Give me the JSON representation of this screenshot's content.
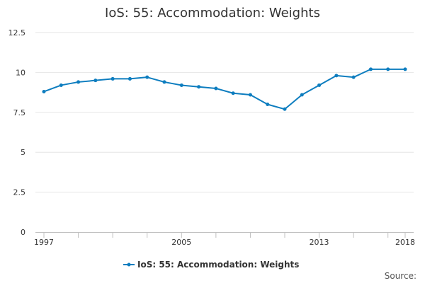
{
  "chart_data": {
    "type": "line",
    "title": "IoS: 55: Accommodation: Weights",
    "xlabel": "",
    "ylabel": "",
    "x": [
      1997,
      1998,
      1999,
      2000,
      2001,
      2002,
      2003,
      2004,
      2005,
      2006,
      2007,
      2008,
      2009,
      2010,
      2011,
      2012,
      2013,
      2014,
      2015,
      2016,
      2017,
      2018
    ],
    "x_tick_labels": [
      "1997",
      "2005",
      "2013",
      "2018"
    ],
    "y_tick_labels": [
      "0",
      "2.5",
      "5",
      "7.5",
      "10",
      "12.5"
    ],
    "ylim": [
      0,
      12.5
    ],
    "xlim": [
      1997,
      2018
    ],
    "grid": true,
    "legend_position": "bottom",
    "series": [
      {
        "name": "IoS: 55: Accommodation: Weights",
        "color": "#0d7dbf",
        "values": [
          8.8,
          9.2,
          9.4,
          9.5,
          9.6,
          9.6,
          9.7,
          9.4,
          9.2,
          9.1,
          9.0,
          8.7,
          8.6,
          8.0,
          7.7,
          8.6,
          9.2,
          9.8,
          9.7,
          10.2,
          10.2,
          10.2
        ]
      }
    ],
    "source_label": "Source:"
  }
}
